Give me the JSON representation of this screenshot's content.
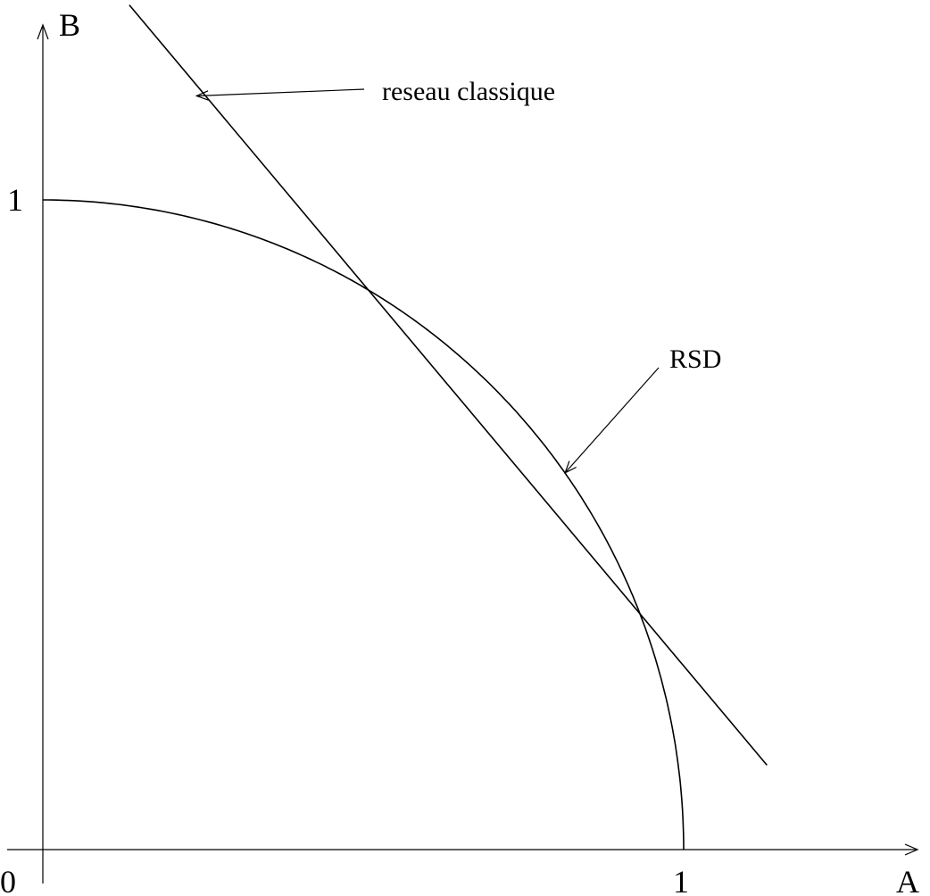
{
  "chart_data": {
    "type": "line",
    "title": "",
    "xlabel": "A",
    "ylabel": "B",
    "xlim": [
      0,
      1.3
    ],
    "ylim": [
      0,
      1.3
    ],
    "grid": false,
    "x_ticks": [
      {
        "value": 0,
        "label": "0"
      },
      {
        "value": 1,
        "label": "1"
      }
    ],
    "y_ticks": [
      {
        "value": 1,
        "label": "1"
      }
    ],
    "series": [
      {
        "kind": "line",
        "x": [
          0.135,
          1.13
        ],
        "y": [
          1.3,
          0.13
        ],
        "color": "#000000"
      },
      {
        "kind": "quarter-circle",
        "x": [
          0,
          0.1,
          0.2,
          0.3,
          0.4,
          0.5,
          0.6,
          0.7,
          0.8,
          0.9,
          0.95,
          0.98,
          1.0
        ],
        "y": [
          1.0,
          0.995,
          0.98,
          0.954,
          0.917,
          0.866,
          0.8,
          0.714,
          0.6,
          0.436,
          0.312,
          0.199,
          0.0
        ],
        "color": "#000000"
      }
    ],
    "annotations": [
      {
        "text": "reseau classique",
        "points_to": {
          "x": 0.24,
          "y": 1.16
        }
      },
      {
        "text": "RSD",
        "points_to": {
          "x": 0.815,
          "y": 0.58
        }
      }
    ]
  }
}
